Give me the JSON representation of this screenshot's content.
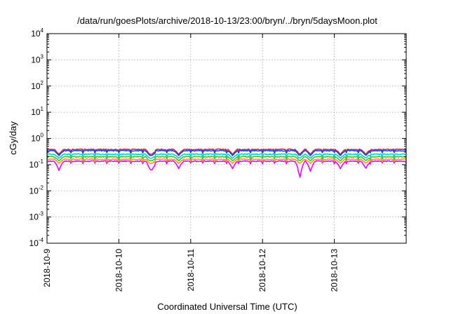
{
  "chart_data": {
    "type": "line",
    "title": "/data/run/goesPlots/archive/2018-10-13/23:00/bryn/../bryn/5daysMoon.plot",
    "xlabel": "Coordinated Universal Time (UTC)",
    "ylabel": "cGy/day",
    "yscale": "log",
    "ylim": [
      0.0001,
      10000
    ],
    "y_ticks": [
      {
        "base": "10",
        "exp": "-4"
      },
      {
        "base": "10",
        "exp": "-3"
      },
      {
        "base": "10",
        "exp": "-2"
      },
      {
        "base": "10",
        "exp": "-1"
      },
      {
        "base": "10",
        "exp": "0"
      },
      {
        "base": "10",
        "exp": "1"
      },
      {
        "base": "10",
        "exp": "2"
      },
      {
        "base": "10",
        "exp": "3"
      },
      {
        "base": "10",
        "exp": "4"
      }
    ],
    "xlim": [
      "2018-10-09T00:00",
      "2018-10-14T00:00"
    ],
    "x_ticks": [
      "2018-10-9",
      "2018-10-10",
      "2018-10-11",
      "2018-10-12",
      "2018-10-13"
    ],
    "grid": true,
    "series": [
      {
        "color": "#ff00ff",
        "base": 0.135,
        "dip_depth": 0.6
      },
      {
        "color": "#e8a000",
        "base": 0.16,
        "dip_depth": 0.3
      },
      {
        "color": "#3fbf3f",
        "base": 0.2,
        "dip_depth": 0.3
      },
      {
        "color": "#00d0d0",
        "base": 0.25,
        "dip_depth": 0.3
      },
      {
        "color": "#e82020",
        "base": 0.38,
        "dip_depth": 0.35
      },
      {
        "color": "#2244dd",
        "base": 0.34,
        "dip_depth": 0.35
      }
    ],
    "dips": [
      {
        "t": "2018-10-09T04:00",
        "magenta": 0.06
      },
      {
        "t": "2018-10-10T10:30",
        "magenta": 0.075
      },
      {
        "t": "2018-10-10T11:00",
        "magenta": 0.06
      },
      {
        "t": "2018-10-10T20:00",
        "magenta": 0.07
      },
      {
        "t": "2018-10-11T14:00",
        "magenta": 0.07
      },
      {
        "t": "2018-10-12T12:30",
        "magenta": 0.028
      },
      {
        "t": "2018-10-12T16:00",
        "magenta": 0.055
      },
      {
        "t": "2018-10-13T02:00",
        "magenta": 0.07
      },
      {
        "t": "2018-10-13T10:30",
        "magenta": 0.07
      }
    ]
  }
}
